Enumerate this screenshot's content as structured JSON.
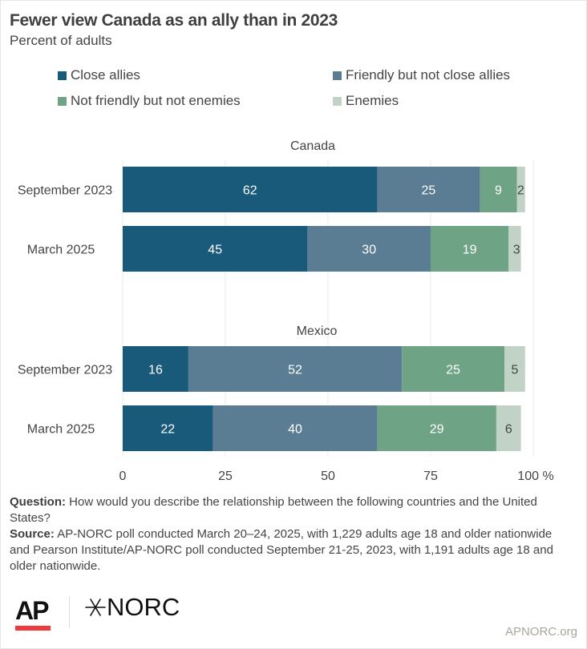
{
  "title": "Fewer view Canada as an ally than in 2023",
  "subtitle": "Percent of adults",
  "legend": [
    {
      "label": "Close allies",
      "color": "#195a7a"
    },
    {
      "label": "Friendly but not close allies",
      "color": "#5b7d93"
    },
    {
      "label": "Not friendly but not enemies",
      "color": "#6fa386"
    },
    {
      "label": "Enemies",
      "color": "#c1d2c6"
    }
  ],
  "chart_data": {
    "type": "bar",
    "orientation": "horizontal-stacked",
    "title": "Fewer view Canada as an ally than in 2023",
    "subtitle": "Percent of adults",
    "xlim": [
      0,
      100
    ],
    "xticks": [
      "0",
      "25",
      "50",
      "75",
      "100 %"
    ],
    "grid": true,
    "legend_position": "top",
    "series_names": [
      "Close allies",
      "Friendly but not close allies",
      "Not friendly but not enemies",
      "Enemies"
    ],
    "groups": [
      {
        "name": "Canada",
        "rows": [
          {
            "label": "September 2023",
            "values": [
              62,
              25,
              9,
              2
            ]
          },
          {
            "label": "March 2025",
            "values": [
              45,
              30,
              19,
              3
            ]
          }
        ]
      },
      {
        "name": "Mexico",
        "rows": [
          {
            "label": "September 2023",
            "values": [
              16,
              52,
              25,
              5
            ]
          },
          {
            "label": "March 2025",
            "values": [
              22,
              40,
              29,
              6
            ]
          }
        ]
      }
    ],
    "label_colors": [
      "#ffffff",
      "#ffffff",
      "#ffffff",
      "#444444"
    ]
  },
  "notes": {
    "question_label": "Question:",
    "question_text": " How would you describe the relationship between the following countries and the United States?",
    "source_label": "Source:",
    "source_text": " AP-NORC poll conducted March 20–24, 2025, with 1,229 adults age 18 and older nationwide and Pearson Institute/AP-NORC poll conducted September 21-25, 2023, with 1,191 adults age 18 and older nationwide."
  },
  "logos": {
    "ap": "AP",
    "norc": "NORC",
    "site": "APNORC.org"
  }
}
